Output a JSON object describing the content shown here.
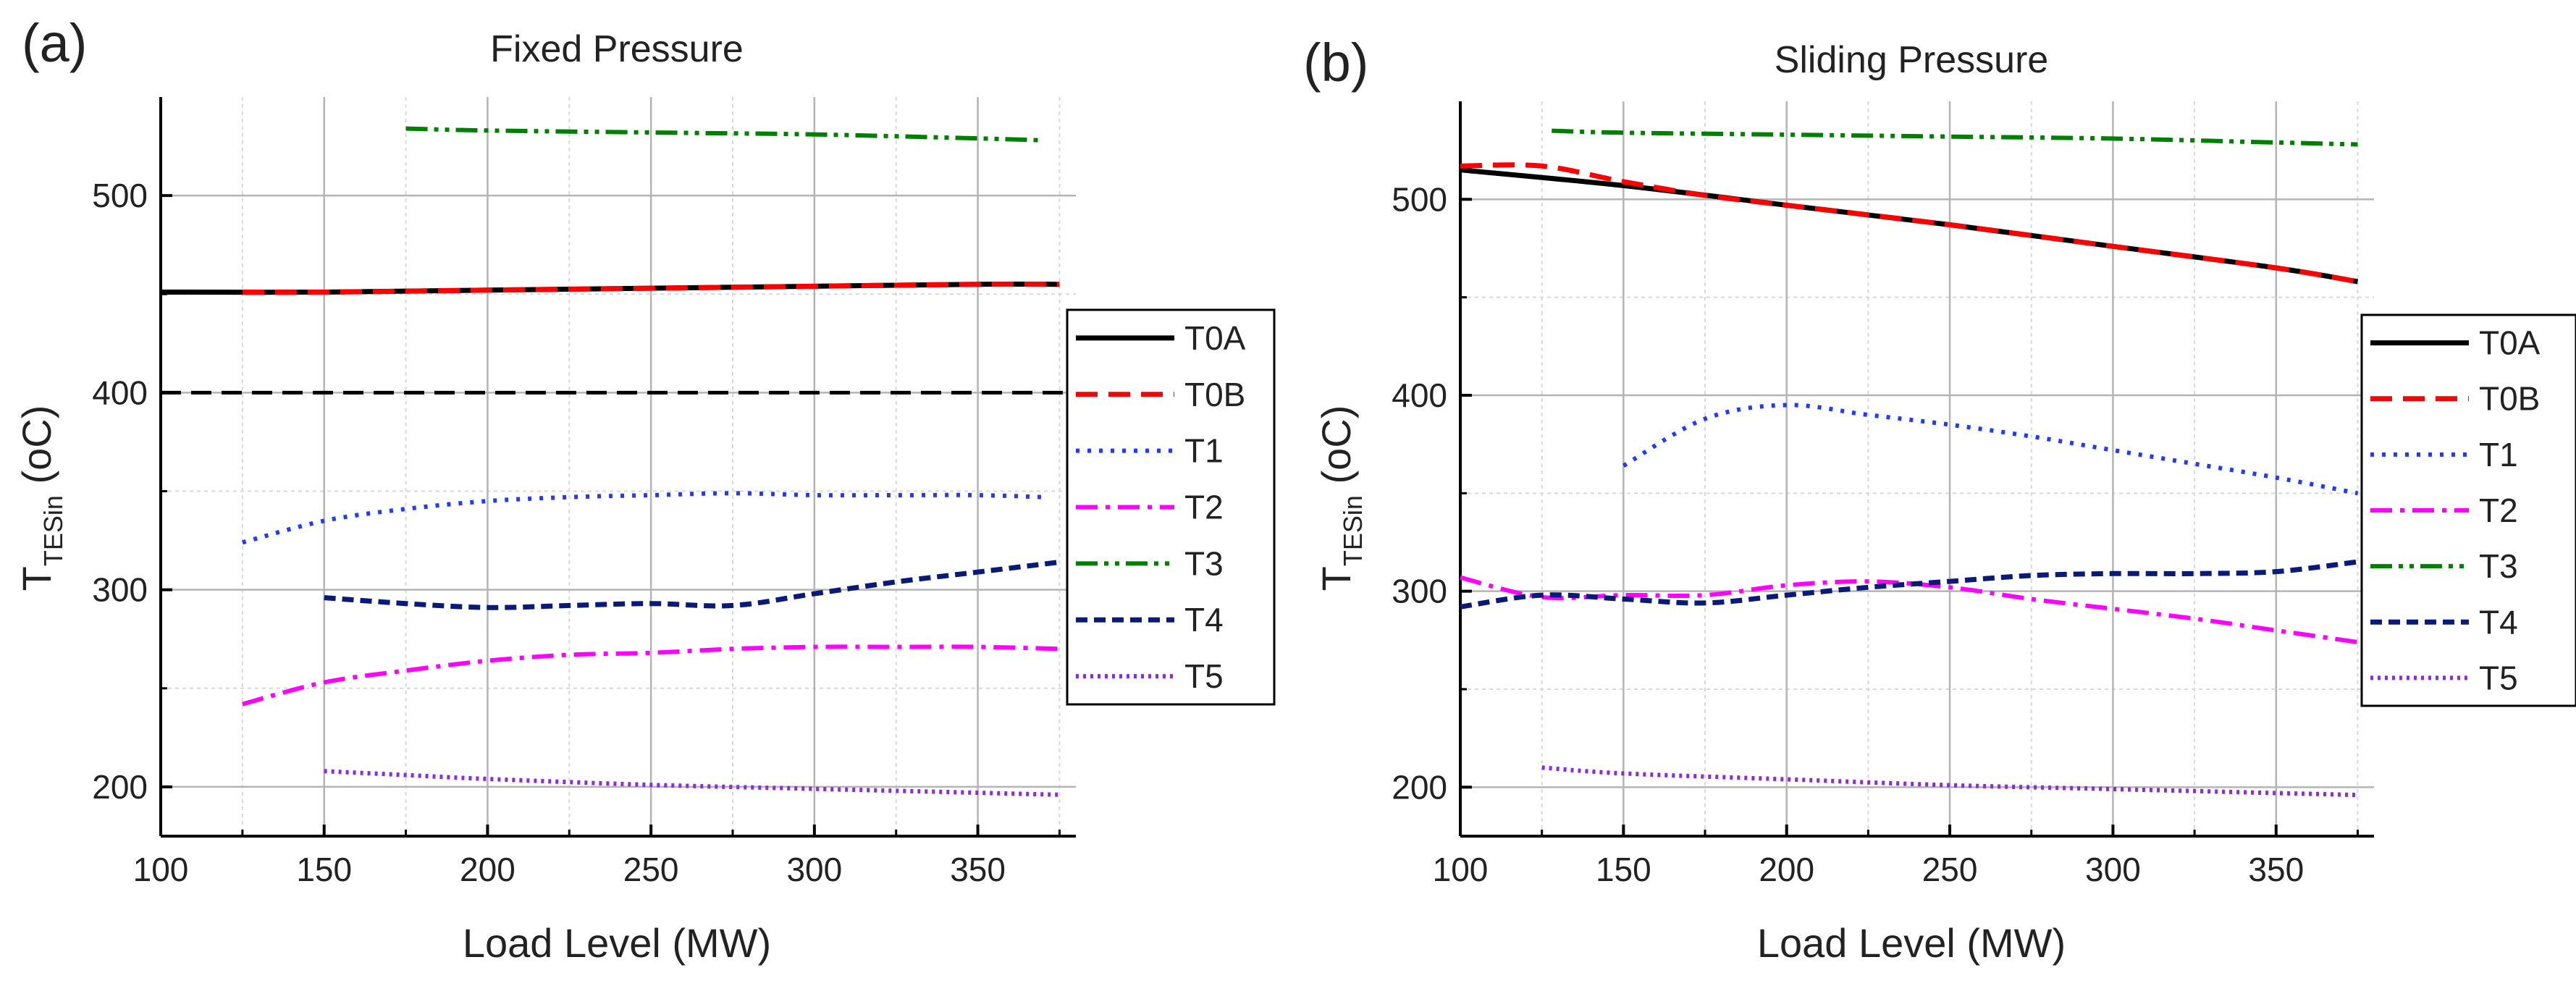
{
  "chart_data": [
    {
      "panel_label": "(a)",
      "type": "line",
      "title": "Fixed Pressure",
      "xlabel": "Load Level (MW)",
      "ylabel": {
        "main": "T",
        "sub": "TESin",
        "suffix": " (oC)"
      },
      "xlim": [
        100,
        380
      ],
      "ylim": [
        175,
        550
      ],
      "xticks": [
        100,
        150,
        200,
        250,
        300,
        350
      ],
      "yticks": [
        200,
        300,
        400,
        500
      ],
      "grid": true,
      "legend_position": "right",
      "reference_line": {
        "y": 400,
        "color": "#000000",
        "style": "dash"
      },
      "series": [
        {
          "name": "T0A",
          "color": "#000000",
          "style": "solid",
          "points": [
            [
              100,
              451
            ],
            [
              150,
              451
            ],
            [
              200,
              452
            ],
            [
              250,
              453
            ],
            [
              300,
              454
            ],
            [
              350,
              455
            ],
            [
              375,
              455
            ]
          ]
        },
        {
          "name": "T0B",
          "color": "#ff0000",
          "style": "dash",
          "points": [
            [
              125,
              451
            ],
            [
              150,
              451
            ],
            [
              200,
              452
            ],
            [
              250,
              453
            ],
            [
              300,
              454
            ],
            [
              350,
              455
            ],
            [
              375,
              455
            ]
          ]
        },
        {
          "name": "T1",
          "color": "#1f3bff",
          "style": "dot",
          "points": [
            [
              125,
              324
            ],
            [
              150,
              335
            ],
            [
              175,
              341
            ],
            [
              200,
              345
            ],
            [
              225,
              347
            ],
            [
              250,
              348
            ],
            [
              275,
              349
            ],
            [
              300,
              348
            ],
            [
              325,
              348
            ],
            [
              350,
              348
            ],
            [
              370,
              347
            ]
          ]
        },
        {
          "name": "T2",
          "color": "#ff00ff",
          "style": "dashdot",
          "points": [
            [
              125,
              242
            ],
            [
              150,
              253
            ],
            [
              175,
              259
            ],
            [
              200,
              264
            ],
            [
              225,
              267
            ],
            [
              250,
              268
            ],
            [
              275,
              270
            ],
            [
              300,
              271
            ],
            [
              325,
              271
            ],
            [
              350,
              271
            ],
            [
              375,
              270
            ]
          ]
        },
        {
          "name": "T3",
          "color": "#008000",
          "style": "dashdotdot",
          "points": [
            [
              175,
              534
            ],
            [
              200,
              533
            ],
            [
              250,
              532
            ],
            [
              300,
              531
            ],
            [
              350,
              529
            ],
            [
              370,
              528
            ]
          ]
        },
        {
          "name": "T4",
          "color": "#0a1a78",
          "style": "shortdash",
          "points": [
            [
              150,
              296
            ],
            [
              175,
              293
            ],
            [
              200,
              291
            ],
            [
              225,
              292
            ],
            [
              250,
              293
            ],
            [
              275,
              292
            ],
            [
              300,
              298
            ],
            [
              325,
              304
            ],
            [
              350,
              309
            ],
            [
              375,
              314
            ]
          ]
        },
        {
          "name": "T5",
          "color": "#8a2be2",
          "style": "shortdot",
          "points": [
            [
              150,
              208
            ],
            [
              175,
              206
            ],
            [
              200,
              204
            ],
            [
              250,
              201
            ],
            [
              300,
              199
            ],
            [
              350,
              197
            ],
            [
              375,
              196
            ]
          ]
        }
      ]
    },
    {
      "panel_label": "(b)",
      "type": "line",
      "title": "Sliding Pressure",
      "xlabel": "Load Level (MW)",
      "ylabel": {
        "main": "T",
        "sub": "TESin",
        "suffix": " (oC)"
      },
      "xlim": [
        100,
        380
      ],
      "ylim": [
        175,
        550
      ],
      "xticks": [
        100,
        150,
        200,
        250,
        300,
        350
      ],
      "yticks": [
        200,
        300,
        400,
        500
      ],
      "grid": true,
      "legend_position": "right",
      "series": [
        {
          "name": "T0A",
          "color": "#000000",
          "style": "solid",
          "points": [
            [
              100,
              515
            ],
            [
              150,
              507
            ],
            [
              200,
              497
            ],
            [
              250,
              487
            ],
            [
              300,
              476
            ],
            [
              350,
              465
            ],
            [
              375,
              458
            ]
          ]
        },
        {
          "name": "T0B",
          "color": "#ff0000",
          "style": "dash",
          "points": [
            [
              100,
              517
            ],
            [
              125,
              517
            ],
            [
              150,
              509
            ],
            [
              175,
              502
            ],
            [
              200,
              497
            ],
            [
              250,
              487
            ],
            [
              300,
              476
            ],
            [
              350,
              465
            ],
            [
              375,
              458
            ]
          ]
        },
        {
          "name": "T1",
          "color": "#1f3bff",
          "style": "dot",
          "points": [
            [
              150,
              364
            ],
            [
              175,
              388
            ],
            [
              200,
              395
            ],
            [
              225,
              390
            ],
            [
              250,
              385
            ],
            [
              275,
              379
            ],
            [
              300,
              372
            ],
            [
              325,
              365
            ],
            [
              350,
              358
            ],
            [
              375,
              350
            ]
          ]
        },
        {
          "name": "T2",
          "color": "#ff00ff",
          "style": "dashdot",
          "points": [
            [
              100,
              307
            ],
            [
              125,
              297
            ],
            [
              150,
              298
            ],
            [
              175,
              298
            ],
            [
              200,
              303
            ],
            [
              225,
              305
            ],
            [
              250,
              302
            ],
            [
              275,
              296
            ],
            [
              300,
              291
            ],
            [
              325,
              286
            ],
            [
              350,
              280
            ],
            [
              375,
              274
            ]
          ]
        },
        {
          "name": "T3",
          "color": "#008000",
          "style": "dashdotdot",
          "points": [
            [
              128,
              535
            ],
            [
              150,
              534
            ],
            [
              200,
              533
            ],
            [
              250,
              532
            ],
            [
              300,
              531
            ],
            [
              350,
              529
            ],
            [
              375,
              528
            ]
          ]
        },
        {
          "name": "T4",
          "color": "#0a1a78",
          "style": "shortdash",
          "points": [
            [
              100,
              292
            ],
            [
              125,
              298
            ],
            [
              150,
              296
            ],
            [
              175,
              294
            ],
            [
              200,
              298
            ],
            [
              225,
              302
            ],
            [
              250,
              305
            ],
            [
              275,
              308
            ],
            [
              300,
              309
            ],
            [
              325,
              309
            ],
            [
              350,
              310
            ],
            [
              375,
              315
            ]
          ]
        },
        {
          "name": "T5",
          "color": "#8a2be2",
          "style": "shortdot",
          "points": [
            [
              125,
              210
            ],
            [
              150,
              207
            ],
            [
              200,
              204
            ],
            [
              250,
              201
            ],
            [
              300,
              199
            ],
            [
              350,
              197
            ],
            [
              375,
              196
            ]
          ]
        }
      ]
    }
  ]
}
